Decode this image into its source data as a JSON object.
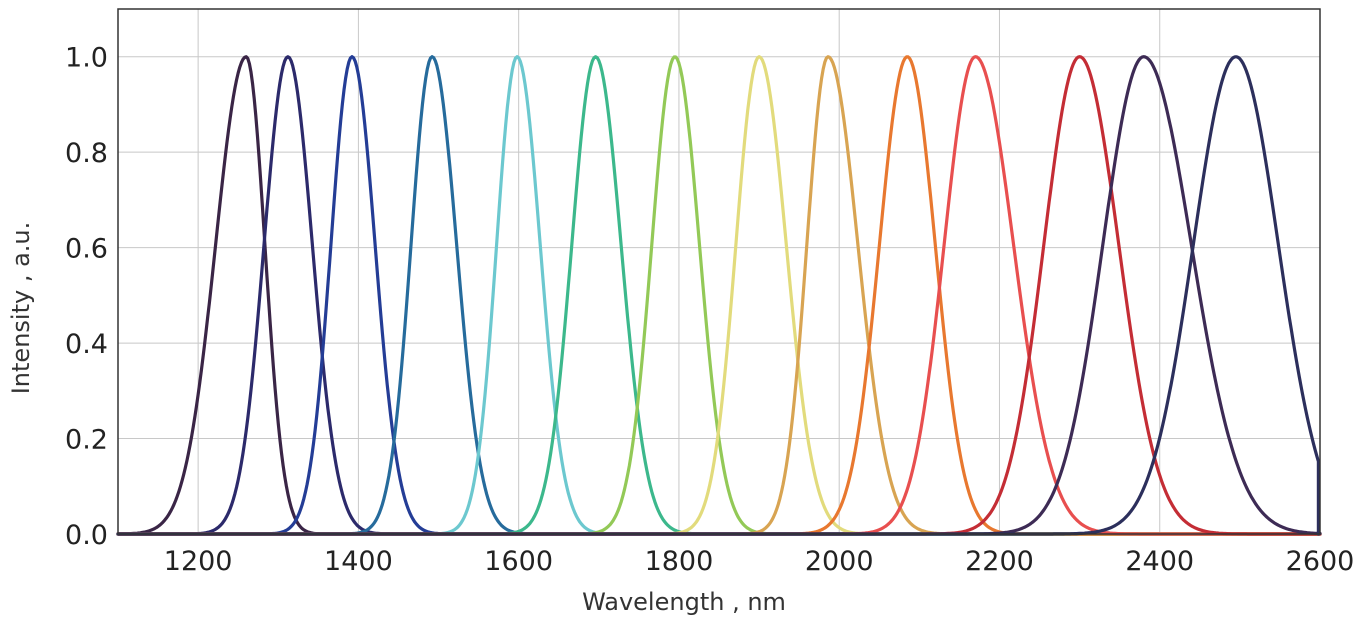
{
  "chart_data": {
    "type": "line",
    "title": "",
    "xlabel": "Wavelength , nm",
    "ylabel": "Intensity , a.u.",
    "xlim": [
      1100,
      2600
    ],
    "ylim": [
      0,
      1.1
    ],
    "xticks": [
      1200,
      1400,
      1600,
      1800,
      2000,
      2200,
      2400,
      2600
    ],
    "xtick_labels": [
      "1200",
      "1400",
      "1600",
      "1800",
      "2000",
      "2200",
      "2400",
      "2600"
    ],
    "yticks": [
      0.0,
      0.2,
      0.4,
      0.6,
      0.8,
      1.0
    ],
    "ytick_labels": [
      "0.0",
      "0.2",
      "0.4",
      "0.6",
      "0.8",
      "1.0"
    ],
    "grid": true,
    "legend": "none",
    "series": [
      {
        "peak": 1260,
        "fwhm_left": 90,
        "fwhm_right": 55,
        "color": "#3a2546"
      },
      {
        "peak": 1312,
        "fwhm_left": 70,
        "fwhm_right": 72,
        "color": "#2c2a6b"
      },
      {
        "peak": 1392,
        "fwhm_left": 62,
        "fwhm_right": 68,
        "color": "#243d96"
      },
      {
        "peak": 1492,
        "fwhm_left": 62,
        "fwhm_right": 72,
        "color": "#266b9c"
      },
      {
        "peak": 1598,
        "fwhm_left": 60,
        "fwhm_right": 68,
        "color": "#6cc8cf"
      },
      {
        "peak": 1696,
        "fwhm_left": 70,
        "fwhm_right": 75,
        "color": "#3cb88c"
      },
      {
        "peak": 1795,
        "fwhm_left": 68,
        "fwhm_right": 72,
        "color": "#93c957"
      },
      {
        "peak": 1900,
        "fwhm_left": 68,
        "fwhm_right": 80,
        "color": "#e2db7c"
      },
      {
        "peak": 1986,
        "fwhm_left": 62,
        "fwhm_right": 88,
        "color": "#d8a452"
      },
      {
        "peak": 2085,
        "fwhm_left": 82,
        "fwhm_right": 82,
        "color": "#e8782f"
      },
      {
        "peak": 2170,
        "fwhm_left": 92,
        "fwhm_right": 112,
        "color": "#e84f4f"
      },
      {
        "peak": 2300,
        "fwhm_left": 105,
        "fwhm_right": 115,
        "color": "#c42d35"
      },
      {
        "peak": 2380,
        "fwhm_left": 120,
        "fwhm_right": 140,
        "color": "#3d2b55"
      },
      {
        "peak": 2495,
        "fwhm_left": 125,
        "fwhm_right": 125,
        "color": "#2c2f5c",
        "cutoff": 2598
      }
    ]
  }
}
